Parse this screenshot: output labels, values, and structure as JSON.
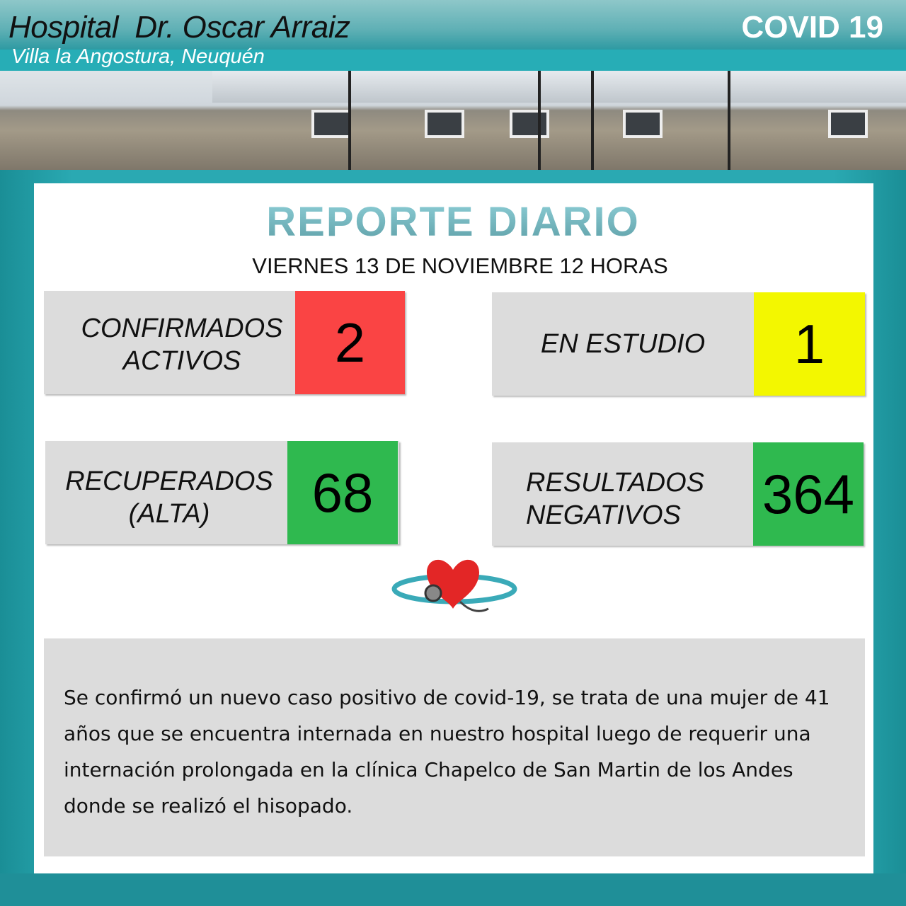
{
  "header": {
    "hospital": "Hospital  Dr. Oscar Arraiz",
    "location": "Villa la Angostura, Neuquén",
    "badge": "COVID 19"
  },
  "report": {
    "title": "REPORTE DIARIO",
    "date": "VIERNES 13 DE NOVIEMBRE 12 HORAS"
  },
  "stats": [
    {
      "label1": "CONFIRMADOS",
      "label2": "ACTIVOS",
      "value": "2",
      "color": "#fa4444"
    },
    {
      "label1": "EN ESTUDIO",
      "label2": "",
      "value": "1",
      "color": "#f3f700"
    },
    {
      "label1": "RECUPERADOS",
      "label2": "(ALTA)",
      "value": "68",
      "color": "#2fb94f"
    },
    {
      "label1": "RESULTADOS",
      "label2": "NEGATIVOS",
      "value": "364",
      "color": "#2fb94f"
    }
  ],
  "icon": "heart-stethoscope-icon",
  "note": "Se confirmó un nuevo caso positivo de covid-19, se trata de una mujer de 41 años que se encuentra internada en nuestro hospital luego de requerir una internación prolongada en la clínica Chapelco de San Martin de los Andes donde se realizó el hisopado."
}
